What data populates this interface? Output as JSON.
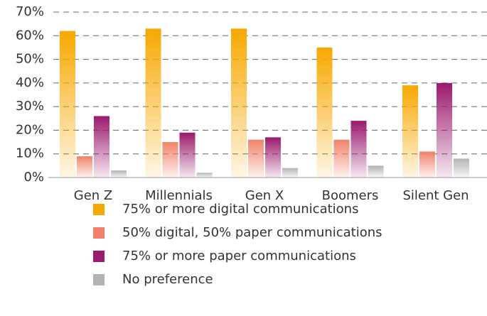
{
  "chart_data": {
    "type": "bar",
    "categories": [
      "Gen Z",
      "Millennials",
      "Gen X",
      "Boomers",
      "Silent Gen"
    ],
    "series": [
      {
        "name": "75% or more digital communications",
        "color": "#f7a800",
        "values": [
          62,
          63,
          63,
          55,
          39
        ]
      },
      {
        "name": "50% digital, 50% paper communications",
        "color": "#f0826a",
        "values": [
          9,
          15,
          16,
          16,
          11
        ]
      },
      {
        "name": "75% or more paper communications",
        "color": "#9b1a6e",
        "values": [
          26,
          19,
          17,
          24,
          40
        ]
      },
      {
        "name": "No preference",
        "color": "#b3b3b3",
        "values": [
          3,
          2,
          4,
          5,
          8
        ]
      }
    ],
    "ylim": [
      0,
      70
    ],
    "yticks": [
      {
        "value": 0,
        "label": "0%"
      },
      {
        "value": 10,
        "label": "10%"
      },
      {
        "value": 20,
        "label": "20%"
      },
      {
        "value": 30,
        "label": "30%"
      },
      {
        "value": 40,
        "label": "40%"
      },
      {
        "value": 50,
        "label": "50%"
      },
      {
        "value": 60,
        "label": "60%"
      },
      {
        "value": 70,
        "label": "70%"
      }
    ],
    "grid": true,
    "legend": "bottom"
  }
}
